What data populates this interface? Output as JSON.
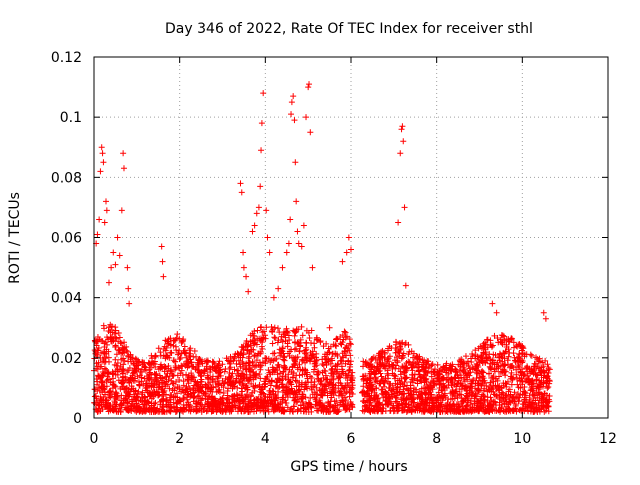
{
  "chart_data": {
    "type": "scatter",
    "title": "Day 346 of 2022, Rate Of TEC Index for receiver sthl",
    "xlabel": "GPS time / hours",
    "ylabel": "ROTI / TECUs",
    "xlim": [
      0,
      12
    ],
    "ylim": [
      0,
      0.12
    ],
    "xticks": [
      0,
      2,
      4,
      6,
      8,
      10,
      12
    ],
    "xtick_labels": [
      "0",
      "2",
      "4",
      "6",
      "8",
      "10",
      "12"
    ],
    "yticks": [
      0,
      0.02,
      0.04,
      0.06,
      0.08,
      0.1,
      0.12
    ],
    "ytick_labels": [
      "0",
      "0.02",
      "0.04",
      "0.06",
      "0.08",
      "0.1",
      "0.12"
    ],
    "grid": true,
    "marker": "+",
    "color": "#ff0000",
    "data_gap": [
      6.05,
      6.25
    ],
    "series": [
      {
        "name": "ROTI",
        "points": [
          [
            0.05,
            0.058
          ],
          [
            0.08,
            0.061
          ],
          [
            0.12,
            0.066
          ],
          [
            0.15,
            0.082
          ],
          [
            0.18,
            0.09
          ],
          [
            0.2,
            0.088
          ],
          [
            0.22,
            0.085
          ],
          [
            0.25,
            0.065
          ],
          [
            0.28,
            0.072
          ],
          [
            0.3,
            0.069
          ],
          [
            0.35,
            0.045
          ],
          [
            0.4,
            0.05
          ],
          [
            0.45,
            0.055
          ],
          [
            0.5,
            0.051
          ],
          [
            0.55,
            0.06
          ],
          [
            0.6,
            0.054
          ],
          [
            0.65,
            0.069
          ],
          [
            0.68,
            0.088
          ],
          [
            0.7,
            0.083
          ],
          [
            0.78,
            0.05
          ],
          [
            0.8,
            0.043
          ],
          [
            0.82,
            0.038
          ],
          [
            1.58,
            0.057
          ],
          [
            1.6,
            0.052
          ],
          [
            1.62,
            0.047
          ],
          [
            3.42,
            0.078
          ],
          [
            3.45,
            0.075
          ],
          [
            3.48,
            0.055
          ],
          [
            3.5,
            0.05
          ],
          [
            3.55,
            0.047
          ],
          [
            3.6,
            0.042
          ],
          [
            3.7,
            0.062
          ],
          [
            3.75,
            0.064
          ],
          [
            3.8,
            0.068
          ],
          [
            3.85,
            0.07
          ],
          [
            3.88,
            0.077
          ],
          [
            3.9,
            0.089
          ],
          [
            3.92,
            0.098
          ],
          [
            3.95,
            0.108
          ],
          [
            4.02,
            0.069
          ],
          [
            4.05,
            0.06
          ],
          [
            4.1,
            0.055
          ],
          [
            4.2,
            0.04
          ],
          [
            4.3,
            0.043
          ],
          [
            4.4,
            0.05
          ],
          [
            4.5,
            0.055
          ],
          [
            4.55,
            0.058
          ],
          [
            4.58,
            0.066
          ],
          [
            4.6,
            0.101
          ],
          [
            4.62,
            0.105
          ],
          [
            4.65,
            0.107
          ],
          [
            4.68,
            0.099
          ],
          [
            4.7,
            0.085
          ],
          [
            4.72,
            0.072
          ],
          [
            4.75,
            0.062
          ],
          [
            4.78,
            0.058
          ],
          [
            4.85,
            0.057
          ],
          [
            4.9,
            0.064
          ],
          [
            4.95,
            0.1
          ],
          [
            5.0,
            0.11
          ],
          [
            5.02,
            0.111
          ],
          [
            5.05,
            0.095
          ],
          [
            5.1,
            0.05
          ],
          [
            5.5,
            0.03
          ],
          [
            5.8,
            0.052
          ],
          [
            5.9,
            0.055
          ],
          [
            5.95,
            0.06
          ],
          [
            6.0,
            0.056
          ],
          [
            7.1,
            0.065
          ],
          [
            7.15,
            0.088
          ],
          [
            7.18,
            0.096
          ],
          [
            7.2,
            0.097
          ],
          [
            7.22,
            0.092
          ],
          [
            7.25,
            0.07
          ],
          [
            7.28,
            0.044
          ],
          [
            9.3,
            0.038
          ],
          [
            9.4,
            0.035
          ],
          [
            10.5,
            0.035
          ],
          [
            10.55,
            0.033
          ]
        ]
      }
    ]
  }
}
